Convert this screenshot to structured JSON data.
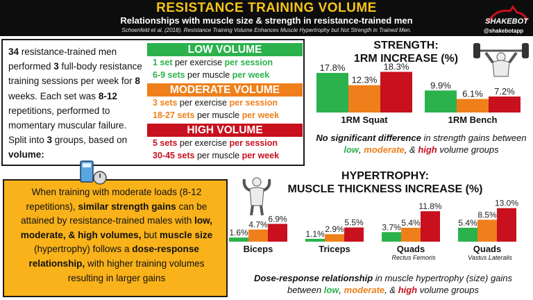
{
  "header": {
    "title": "RESISTANCE TRAINING VOLUME",
    "subtitle": "Relationships with muscle size & strength in resistance-trained men",
    "citation": "Schoenfeld et al. (2018). Resistance Training Volume Enhances Muscle Hypertrophy but Not Strength in Trained Men.",
    "brand": "@shakebotapp"
  },
  "colors": {
    "low": "#2bb24c",
    "moderate": "#ef7f1a",
    "high": "#c8101e",
    "header_bg": "#0d0d0d",
    "title": "#f5c518",
    "conclusion_bg": "#f9b21a"
  },
  "study": {
    "participants": "34",
    "p1": " resistance-trained men performed ",
    "sessions": "3",
    "p2": " full-body resistance training sessions per week for ",
    "weeks": "8",
    "p3": " weeks. Each set was ",
    "reps": "8-12",
    "p4": " repetitions, performed to momentary muscular failure. Split into ",
    "groups": "3",
    "p5": " groups, based on ",
    "basis": "volume:"
  },
  "volumes": [
    {
      "label": "LOW VOLUME",
      "session_value": "1 set",
      "session_text": " per exercise ",
      "session_unit": "per session",
      "week_value": "6-9 sets",
      "week_text": " per muscle ",
      "week_unit": "per week"
    },
    {
      "label": "MODERATE VOLUME",
      "session_value": "3 sets",
      "session_text": " per exercise ",
      "session_unit": "per session",
      "week_value": "18-27 sets",
      "week_text": " per muscle ",
      "week_unit": "per week"
    },
    {
      "label": "HIGH VOLUME",
      "session_value": "5 sets",
      "session_text": " per exercise ",
      "session_unit": "per session",
      "week_value": "30-45 sets",
      "week_text": " per muscle ",
      "week_unit": "per week"
    }
  ],
  "conclusion": {
    "t1": "When training with moderate loads (8-12 repetitions), ",
    "b1": "similar strength gains",
    "t2": " can be attained by resistance-trained males with ",
    "b2": "low, moderate, & high volumes,",
    "t3": " but ",
    "b3": "muscle size",
    "t4": " (hypertrophy) follows a ",
    "b4": "dose-response relationship,",
    "t5": " with higher training volumes resulting in larger gains"
  },
  "strength_note": {
    "b": "No significant difference",
    "t1": " in strength gains between ",
    "low": "low",
    "sep1": ", ",
    "mod": "moderate",
    "sep2": ", & ",
    "high": "high",
    "t2": " volume groups"
  },
  "hyper_note": {
    "b": "Dose-response relationship",
    "t1": " in muscle hypertrophy (size) gains between ",
    "low": "low",
    "sep1": ", ",
    "mod": "moderate",
    "sep2": ", & ",
    "high": "high",
    "t2": " volume groups"
  },
  "chart_data": [
    {
      "type": "bar",
      "title": "STRENGTH:",
      "subtitle": "1RM INCREASE (%)",
      "categories": [
        "1RM Squat",
        "1RM Bench"
      ],
      "series": [
        {
          "values": [
            17.8,
            9.9
          ]
        },
        {
          "values": [
            12.3,
            6.1
          ]
        },
        {
          "values": [
            18.3,
            7.2
          ]
        }
      ],
      "value_labels": [
        [
          "17.8%",
          "12.3%",
          "18.3%"
        ],
        [
          "9.9%",
          "6.1%",
          "7.2%"
        ]
      ],
      "ylim": [
        0,
        20
      ]
    },
    {
      "type": "bar",
      "title": "HYPERTROPHY:",
      "subtitle": "MUSCLE THICKNESS INCREASE (%)",
      "categories": [
        "Biceps",
        "Triceps",
        "Quads",
        "Quads"
      ],
      "category_sublabels": [
        "",
        "",
        "Rectus Femoris",
        "Vastus Lateralis"
      ],
      "series": [
        {
          "values": [
            1.6,
            1.1,
            3.7,
            5.4
          ]
        },
        {
          "values": [
            4.7,
            2.9,
            5.4,
            8.5
          ]
        },
        {
          "values": [
            6.9,
            5.5,
            11.8,
            13.0
          ]
        }
      ],
      "value_labels": [
        [
          "1.6%",
          "4.7%",
          "6.9%"
        ],
        [
          "1.1%",
          "2.9%",
          "5.5%"
        ],
        [
          "3.7%",
          "5.4%",
          "11.8%"
        ],
        [
          "5.4%",
          "8.5%",
          "13.0%"
        ]
      ],
      "ylim": [
        0,
        14
      ]
    }
  ]
}
